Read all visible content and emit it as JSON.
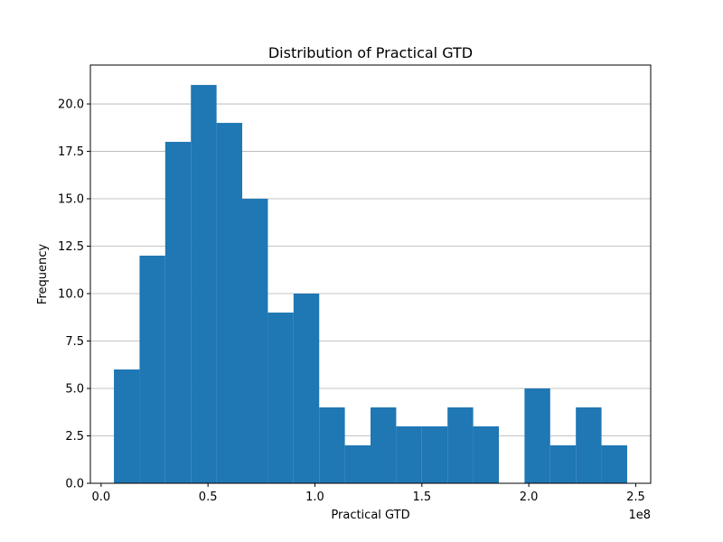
{
  "chart_data": {
    "type": "bar",
    "title": "Distribution of Practical GTD",
    "xlabel": "Practical GTD",
    "ylabel": "Frequency",
    "x_offset_label": "1e8",
    "xlim": [
      -0.05,
      2.57
    ],
    "ylim": [
      0,
      22.05
    ],
    "xticks": [
      0.0,
      0.5,
      1.0,
      1.5,
      2.0,
      2.5
    ],
    "xtick_labels": [
      "0.0",
      "0.5",
      "1.0",
      "1.5",
      "2.0",
      "2.5"
    ],
    "yticks": [
      0.0,
      2.5,
      5.0,
      7.5,
      10.0,
      12.5,
      15.0,
      17.5,
      20.0
    ],
    "ytick_labels": [
      "0.0",
      "2.5",
      "5.0",
      "7.5",
      "10.0",
      "12.5",
      "15.0",
      "17.5",
      "20.0"
    ],
    "grid": "y",
    "bar_color": "#1f77b4",
    "grid_color": "#b0b0b0",
    "bin_edges": [
      0.06,
      0.18,
      0.3,
      0.42,
      0.54,
      0.66,
      0.78,
      0.9,
      1.02,
      1.14,
      1.26,
      1.38,
      1.5,
      1.62,
      1.74,
      1.86,
      1.98,
      2.1,
      2.22,
      2.34,
      2.46
    ],
    "counts": [
      6,
      12,
      18,
      21,
      19,
      15,
      9,
      10,
      4,
      2,
      4,
      3,
      3,
      4,
      3,
      0,
      5,
      2,
      4,
      2
    ]
  }
}
